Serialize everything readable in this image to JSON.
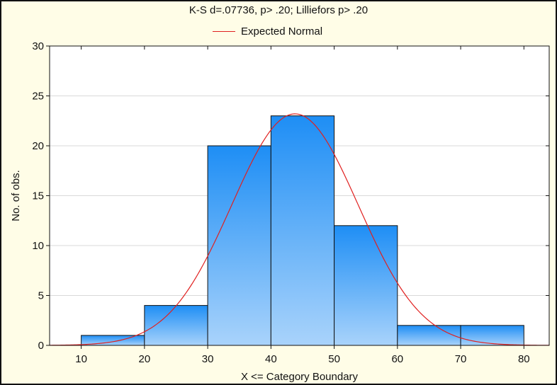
{
  "chart_data": {
    "type": "bar",
    "title": "K-S d=.07736, p> .20; Lilliefors p> .20",
    "xlabel": "X <= Category Boundary",
    "ylabel": "No. of obs.",
    "bins": [
      {
        "from": 10,
        "to": 20,
        "count": 1
      },
      {
        "from": 20,
        "to": 30,
        "count": 4
      },
      {
        "from": 30,
        "to": 40,
        "count": 20
      },
      {
        "from": 40,
        "to": 50,
        "count": 23
      },
      {
        "from": 50,
        "to": 60,
        "count": 12
      },
      {
        "from": 60,
        "to": 70,
        "count": 2
      },
      {
        "from": 70,
        "to": 80,
        "count": 2
      }
    ],
    "xlim": [
      5,
      84
    ],
    "ylim": [
      0,
      30
    ],
    "xticks": [
      10,
      20,
      30,
      40,
      50,
      60,
      70,
      80
    ],
    "yticks": [
      0,
      5,
      10,
      15,
      20,
      25,
      30
    ],
    "expected_normal": {
      "name": "Expected Normal",
      "mean": 43.8,
      "sd": 10.0,
      "peak": 23.2,
      "color": "#e0201f"
    },
    "legend": "top-center",
    "grid": true,
    "colors": {
      "bar_top": "#1e8ef5",
      "bar_bottom": "#a9d3fb",
      "background": "#fffde7",
      "plot_area": "#ffffff"
    }
  }
}
